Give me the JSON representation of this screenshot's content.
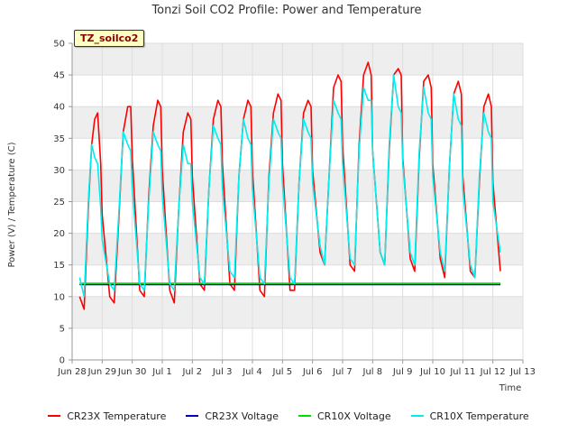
{
  "chart_data": {
    "type": "line",
    "title": "Tonzi Soil CO2 Profile: Power and Temperature",
    "xlabel": "Time",
    "ylabel": "Power (V) / Temperature (C)",
    "site_label": "TZ_soilco2",
    "xlim": [
      0,
      15
    ],
    "ylim": [
      0,
      50
    ],
    "x_ticks": [
      {
        "x": 0,
        "label": "Jun 28"
      },
      {
        "x": 1,
        "label": "Jun 29"
      },
      {
        "x": 2,
        "label": "Jun 30"
      },
      {
        "x": 3,
        "label": "Jul 1"
      },
      {
        "x": 4,
        "label": "Jul 2"
      },
      {
        "x": 5,
        "label": "Jul 3"
      },
      {
        "x": 6,
        "label": "Jul 4"
      },
      {
        "x": 7,
        "label": "Jul 5"
      },
      {
        "x": 8,
        "label": "Jul 6"
      },
      {
        "x": 9,
        "label": "Jul 7"
      },
      {
        "x": 10,
        "label": "Jul 8"
      },
      {
        "x": 11,
        "label": "Jul 9"
      },
      {
        "x": 12,
        "label": "Jul 10"
      },
      {
        "x": 13,
        "label": "Jul 11"
      },
      {
        "x": 14,
        "label": "Jul 12"
      },
      {
        "x": 15,
        "label": "Jul 13"
      }
    ],
    "y_ticks": [
      0,
      5,
      10,
      15,
      20,
      25,
      30,
      35,
      40,
      45,
      50
    ],
    "grid": true,
    "legend_position": "bottom",
    "series": [
      {
        "name": "CR23X Temperature",
        "color": "#ff0000",
        "x": [
          0.25,
          0.4,
          0.55,
          0.65,
          0.75,
          0.85,
          0.95,
          1.0,
          1.25,
          1.4,
          1.55,
          1.7,
          1.85,
          1.95,
          2.0,
          2.25,
          2.4,
          2.55,
          2.7,
          2.85,
          2.95,
          3.0,
          3.25,
          3.4,
          3.55,
          3.7,
          3.85,
          3.95,
          4.0,
          4.25,
          4.4,
          4.55,
          4.7,
          4.85,
          4.95,
          5.0,
          5.25,
          5.4,
          5.55,
          5.7,
          5.85,
          5.95,
          6.0,
          6.25,
          6.4,
          6.55,
          6.7,
          6.85,
          6.95,
          7.0,
          7.25,
          7.4,
          7.55,
          7.7,
          7.85,
          7.95,
          8.0,
          8.25,
          8.4,
          8.55,
          8.7,
          8.85,
          8.95,
          9.0,
          9.25,
          9.4,
          9.55,
          9.7,
          9.85,
          9.95,
          10.0,
          10.25,
          10.4,
          10.55,
          10.7,
          10.85,
          10.95,
          11.0,
          11.25,
          11.4,
          11.55,
          11.7,
          11.85,
          11.95,
          12.0,
          12.25,
          12.4,
          12.55,
          12.7,
          12.85,
          12.95,
          13.0,
          13.25,
          13.4,
          13.55,
          13.7,
          13.85,
          13.95,
          14.0,
          14.25
        ],
        "values": [
          10,
          8,
          25,
          34,
          38,
          39,
          31,
          23,
          10,
          9,
          22,
          36,
          40,
          40,
          32,
          11,
          10,
          26,
          37,
          41,
          40,
          30,
          11,
          9,
          24,
          36,
          39,
          38,
          29,
          12,
          11,
          27,
          38,
          41,
          40,
          31,
          12,
          11,
          29,
          38,
          41,
          40,
          30,
          11,
          10,
          29,
          39,
          42,
          41,
          31,
          11,
          11,
          28,
          39,
          41,
          40,
          30,
          17,
          15,
          29,
          43,
          45,
          44,
          34,
          15,
          14,
          34,
          45,
          47,
          45,
          33,
          17,
          15,
          33,
          45,
          46,
          45,
          32,
          16,
          14,
          32,
          44,
          45,
          43,
          31,
          16,
          13,
          30,
          42,
          44,
          42,
          29,
          14,
          13,
          28,
          40,
          42,
          40,
          28,
          14
        ]
      },
      {
        "name": "CR23X Voltage",
        "color": "#0000bb",
        "x": [
          0.25,
          14.25
        ],
        "values": [
          11.9,
          11.9
        ]
      },
      {
        "name": "CR10X Voltage",
        "color": "#00dd00",
        "x": [
          0.25,
          14.25
        ],
        "values": [
          12.1,
          12.1
        ]
      },
      {
        "name": "CR10X Temperature",
        "color": "#00eeee",
        "x": [
          0.25,
          0.4,
          0.55,
          0.65,
          0.75,
          0.85,
          0.95,
          1.0,
          1.25,
          1.4,
          1.55,
          1.7,
          1.85,
          1.95,
          2.0,
          2.25,
          2.4,
          2.55,
          2.7,
          2.85,
          2.95,
          3.0,
          3.25,
          3.4,
          3.55,
          3.7,
          3.85,
          3.95,
          4.0,
          4.25,
          4.4,
          4.55,
          4.7,
          4.85,
          4.95,
          5.0,
          5.25,
          5.4,
          5.55,
          5.7,
          5.85,
          5.95,
          6.0,
          6.25,
          6.4,
          6.55,
          6.7,
          6.85,
          6.95,
          7.0,
          7.25,
          7.4,
          7.55,
          7.7,
          7.85,
          7.95,
          8.0,
          8.25,
          8.4,
          8.55,
          8.7,
          8.85,
          8.95,
          9.0,
          9.25,
          9.4,
          9.55,
          9.7,
          9.85,
          9.95,
          10.0,
          10.25,
          10.4,
          10.55,
          10.7,
          10.85,
          10.95,
          11.0,
          11.25,
          11.4,
          11.55,
          11.7,
          11.85,
          11.95,
          12.0,
          12.25,
          12.4,
          12.55,
          12.7,
          12.85,
          12.95,
          13.0,
          13.25,
          13.4,
          13.55,
          13.7,
          13.85,
          13.95,
          14.0,
          14.25
        ],
        "values": [
          13,
          10,
          26,
          34,
          32,
          31,
          24,
          19,
          12,
          11,
          23,
          36,
          34,
          33,
          27,
          12,
          11,
          25,
          36,
          34,
          33,
          26,
          12,
          11,
          24,
          34,
          31,
          31,
          25,
          13,
          12,
          27,
          37,
          35,
          34,
          27,
          14,
          13,
          29,
          38,
          35,
          34,
          27,
          13,
          12,
          28,
          38,
          36,
          35,
          28,
          13,
          12,
          28,
          38,
          36,
          35,
          28,
          18,
          15,
          29,
          41,
          39,
          38,
          31,
          16,
          15,
          33,
          43,
          41,
          41,
          33,
          17,
          15,
          34,
          45,
          40,
          39,
          31,
          17,
          15,
          33,
          43,
          39,
          38,
          29,
          17,
          14,
          30,
          42,
          38,
          37,
          27,
          15,
          13,
          29,
          39,
          36,
          35,
          25,
          17
        ]
      }
    ]
  }
}
